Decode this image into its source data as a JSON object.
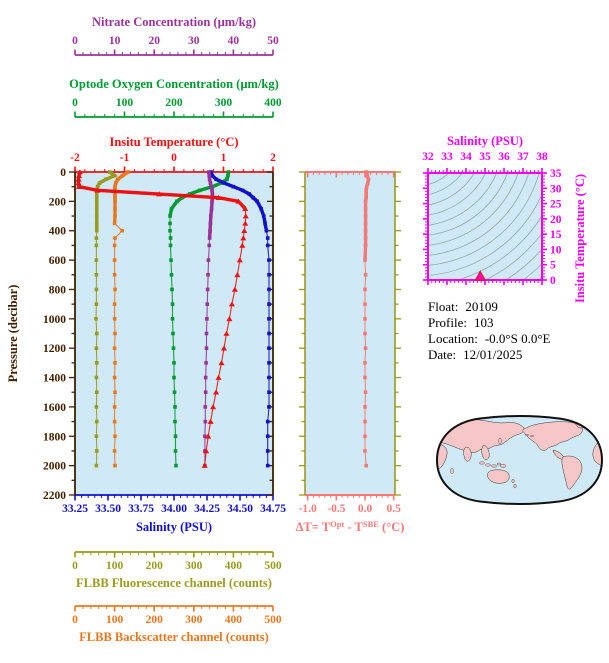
{
  "colors": {
    "nitrate": "#993399",
    "oxygen": "#009933",
    "temperature": "#ee1111",
    "pressure": "#402000",
    "salinity": "#1111cc",
    "fluorescence": "#9a9a20",
    "backscatter": "#e87820",
    "delta_t": "#f87878",
    "ts_frame": "#ee00ee",
    "plot_bg": "#cfeaf6",
    "contours": "#97a6b0",
    "map_land": "#f7c6c6",
    "map_ocean": "#cfeaf6",
    "map_outline": "#111111",
    "ts_marker": "#ff00bb",
    "ts_marker_edge": "#ee1111",
    "text": "#000000"
  },
  "float_info": {
    "rows": [
      {
        "label": "Float:",
        "value": "20109"
      },
      {
        "label": "Profile:",
        "value": "103"
      },
      {
        "label": "Location:",
        "value": "-0.0°S   0.0°E"
      },
      {
        "label": "Date:",
        "value": "12/01/2025"
      }
    ]
  },
  "chart_data": [
    {
      "id": "profile-plot",
      "type": "line",
      "ylabel": "Pressure (decibar)",
      "ylim": [
        0,
        2200
      ],
      "y_ticks": {
        "major": 200,
        "minor": 100,
        "labels": [
          "0",
          "200",
          "400",
          "600",
          "800",
          "1000",
          "1200",
          "1400",
          "1600",
          "1800",
          "2000",
          "2200"
        ]
      },
      "pressure": [
        0,
        25,
        50,
        75,
        100,
        125,
        150,
        175,
        200,
        250,
        300,
        350,
        400,
        450,
        500,
        600,
        700,
        800,
        900,
        1000,
        1100,
        1200,
        1300,
        1400,
        1500,
        1600,
        1700,
        1800,
        1900,
        2000
      ],
      "series": [
        {
          "name": "FLBB Fluorescence channel (counts)",
          "color_key": "fluorescence",
          "range": [
            0,
            500
          ],
          "tick_values": [
            0,
            100,
            200,
            300,
            400,
            500
          ],
          "tick_labels": [
            "0",
            "100",
            "200",
            "300",
            "400",
            "500"
          ],
          "minor_step": 20,
          "marker": "square",
          "thick_to": 420,
          "values": [
            88,
            100,
            78,
            62,
            57,
            55,
            55,
            55,
            55,
            55,
            55,
            55,
            55,
            54,
            54,
            54,
            54,
            54,
            54,
            53,
            55,
            54,
            55,
            54,
            55,
            54,
            55,
            54,
            55,
            54
          ]
        },
        {
          "name": "FLBB Backscatter channel (counts)",
          "color_key": "backscatter",
          "range": [
            0,
            500
          ],
          "tick_values": [
            0,
            100,
            200,
            300,
            400,
            500
          ],
          "tick_labels": [
            "0",
            "100",
            "200",
            "300",
            "400",
            "500"
          ],
          "minor_step": 20,
          "marker": "square",
          "thick_to": 390,
          "values": [
            134,
            120,
            108,
            103,
            101,
            101,
            101,
            101,
            101,
            101,
            101,
            100,
            119,
            101,
            100,
            100,
            100,
            101,
            100,
            100,
            101,
            100,
            101,
            100,
            101,
            100,
            100,
            101,
            100,
            101
          ]
        },
        {
          "name": "Optode Oxygen Concentration (µm/kg)",
          "color_key": "oxygen",
          "range": [
            0,
            400
          ],
          "tick_values": [
            0,
            100,
            200,
            300,
            400
          ],
          "tick_labels": [
            "0",
            "100",
            "200",
            "300",
            "400"
          ],
          "minor_step": 20,
          "marker": "square",
          "thick_to": 300,
          "values": [
            310,
            309,
            307,
            295,
            278,
            252,
            232,
            216,
            206,
            195,
            192,
            192,
            192,
            193,
            193,
            194,
            195,
            196,
            197,
            197,
            198,
            199,
            200,
            200,
            201,
            202,
            202,
            203,
            203,
            204
          ]
        },
        {
          "name": "Salinity (PSU)",
          "color_key": "salinity",
          "range": [
            33.25,
            34.75
          ],
          "tick_values": [
            33.25,
            33.5,
            33.75,
            34.0,
            34.25,
            34.5,
            34.75
          ],
          "tick_labels": [
            "33.25",
            "33.50",
            "33.75",
            "34.00",
            "34.25",
            "34.50",
            "34.75"
          ],
          "minor_step": 0.05,
          "marker": "square",
          "thick_to": 420,
          "values": [
            34.28,
            34.29,
            34.32,
            34.38,
            34.45,
            34.52,
            34.57,
            34.6,
            34.63,
            34.66,
            34.68,
            34.69,
            34.7,
            34.71,
            34.71,
            34.72,
            34.72,
            34.72,
            34.72,
            34.72,
            34.72,
            34.72,
            34.72,
            34.72,
            34.72,
            34.72,
            34.71,
            34.71,
            34.71,
            34.71
          ]
        },
        {
          "name": "Nitrate Concentration (µm/kg)",
          "color_key": "nitrate",
          "range": [
            0,
            50
          ],
          "tick_values": [
            0,
            10,
            20,
            30,
            40,
            50
          ],
          "tick_labels": [
            "0",
            "10",
            "20",
            "30",
            "40",
            "50"
          ],
          "minor_step": 2,
          "marker": "square",
          "thick_to": 450,
          "values": [
            33.8,
            33.9,
            34.0,
            34.2,
            34.4,
            34.6,
            34.7,
            34.7,
            34.6,
            34.5,
            34.3,
            34.2,
            34.1,
            34.0,
            33.9,
            33.7,
            33.6,
            33.5,
            33.4,
            33.3,
            33.2,
            33.2,
            33.1,
            33.0,
            33.0,
            32.9,
            32.9,
            32.8,
            32.8,
            32.8
          ]
        },
        {
          "name": "Insitu Temperature (°C)",
          "color_key": "temperature",
          "range": [
            -2,
            2
          ],
          "tick_values": [
            -2,
            -1,
            0,
            1,
            2
          ],
          "tick_labels": [
            "-2",
            "-1",
            "0",
            "1",
            "2"
          ],
          "minor_step": 0.2,
          "marker": "triangle",
          "thick_to": 280,
          "values": [
            -1.9,
            -1.92,
            -1.93,
            -1.93,
            -1.92,
            -1.55,
            -0.3,
            0.9,
            1.3,
            1.44,
            1.45,
            1.44,
            1.42,
            1.4,
            1.38,
            1.33,
            1.28,
            1.23,
            1.17,
            1.12,
            1.06,
            1.01,
            0.96,
            0.9,
            0.85,
            0.79,
            0.74,
            0.69,
            0.65,
            0.62
          ]
        }
      ]
    },
    {
      "id": "delta-t-plot",
      "type": "line",
      "xlabel_parts": {
        "pre": "ΔT= T",
        "sup1": "Opt",
        "mid": " - T",
        "sup2": "SBE",
        "post": " (°C)"
      },
      "xlim": [
        -1.05,
        0.52
      ],
      "tick_values": [
        -1.0,
        -0.5,
        0.0,
        0.5
      ],
      "tick_labels": [
        "-1.0",
        "-0.5",
        "0.0",
        "0.5"
      ],
      "minor_step": 0.1,
      "marker": "square",
      "thick_to": 620,
      "pressure": [
        0,
        25,
        50,
        75,
        100,
        125,
        150,
        175,
        200,
        250,
        300,
        350,
        400,
        450,
        500,
        600,
        700,
        800,
        900,
        1000,
        1100,
        1200,
        1300,
        1400,
        1500,
        1600,
        1700,
        1800,
        1900,
        2000
      ],
      "values": [
        0.02,
        0.04,
        0.06,
        0.05,
        0.03,
        0.02,
        0.02,
        0.02,
        0.01,
        0.01,
        0.01,
        0.01,
        0.01,
        0.01,
        0.01,
        0.0,
        0.01,
        0.0,
        0.0,
        0.0,
        0.0,
        0.01,
        0.0,
        0.0,
        0.01,
        0.0,
        0.0,
        0.0,
        0.0,
        0.02
      ]
    },
    {
      "id": "ts-diagram",
      "type": "scatter",
      "xlabel": "Salinity (PSU)",
      "ylabel": "Insitu Temperature (°C)",
      "xlim": [
        32,
        38
      ],
      "ylim": [
        0,
        35
      ],
      "x_ticks": {
        "values": [
          32,
          33,
          34,
          35,
          36,
          37,
          38
        ],
        "labels": [
          "32",
          "33",
          "34",
          "35",
          "36",
          "37",
          "38"
        ],
        "minor_step": 0.2
      },
      "y_ticks": {
        "values": [
          0,
          5,
          10,
          15,
          20,
          25,
          30,
          35
        ],
        "labels": [
          "0",
          "5",
          "10",
          "15",
          "20",
          "25",
          "30",
          "35"
        ],
        "minor_step": 1
      },
      "contours": {
        "style": "isopycnal-arcs",
        "count": 18,
        "color_key": "contours"
      },
      "marker": "triangle",
      "points": [
        {
          "salinity": 34.75,
          "temperature": 0.9
        }
      ]
    },
    {
      "id": "location-map",
      "type": "map",
      "description": "World map, Pacific-centered oval projection"
    }
  ]
}
